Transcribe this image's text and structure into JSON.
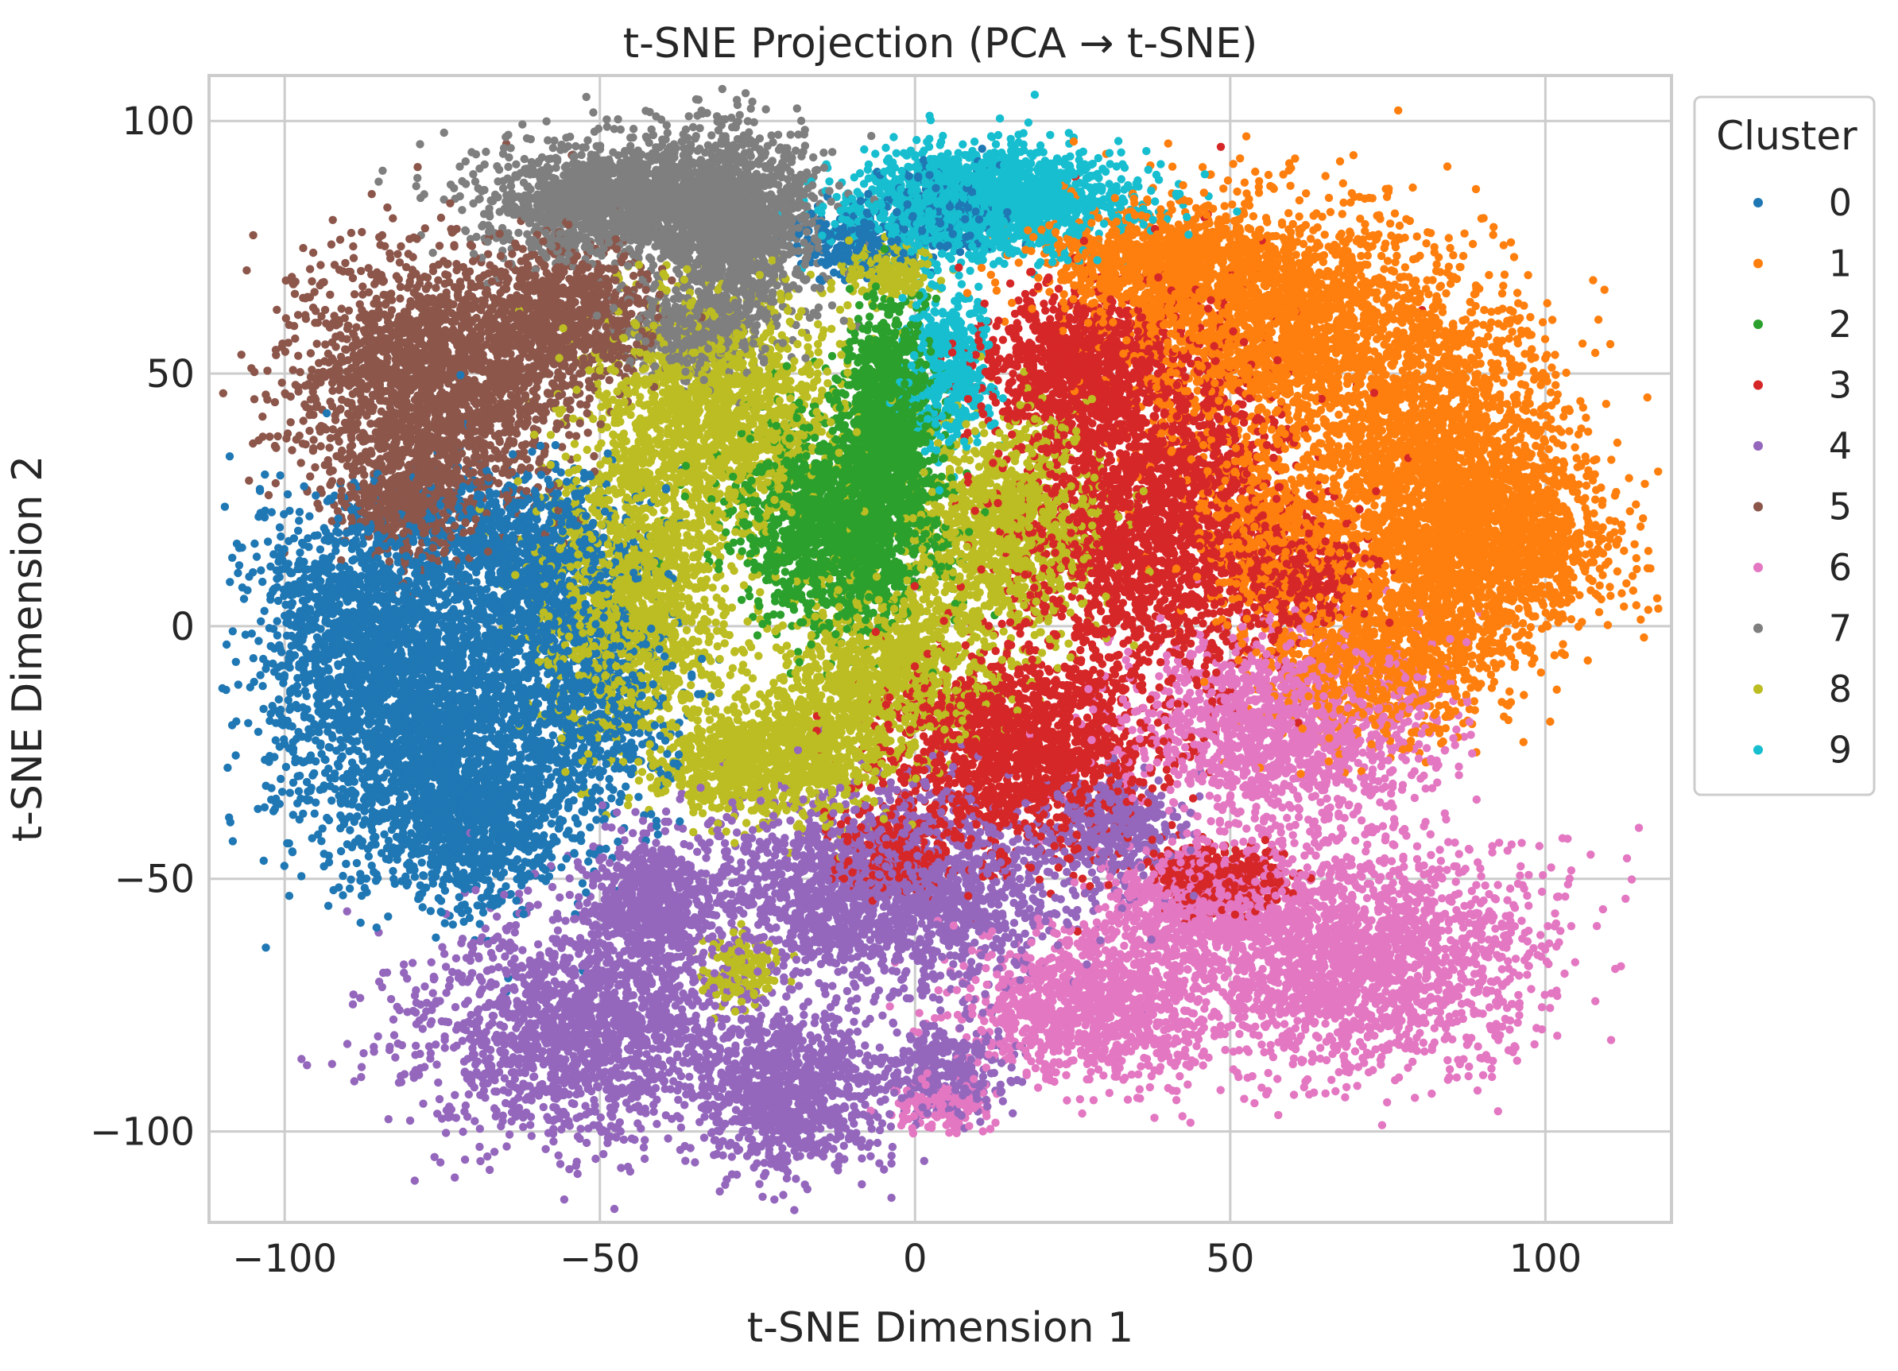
{
  "chart_data": {
    "type": "scatter",
    "title": "t-SNE Projection (PCA → t-SNE)",
    "xlabel": "t-SNE Dimension 1",
    "ylabel": "t-SNE Dimension 2",
    "xlim": [
      -112,
      120
    ],
    "ylim": [
      -118,
      109
    ],
    "xticks": [
      -100,
      -50,
      0,
      50,
      100
    ],
    "yticks": [
      -100,
      -50,
      0,
      50,
      100
    ],
    "xtick_labels": [
      "−100",
      "−50",
      "0",
      "50",
      "100"
    ],
    "ytick_labels": [
      "−100",
      "−50",
      "0",
      "50",
      "100"
    ],
    "grid": true,
    "legend": {
      "title": "Cluster",
      "placement": "outside-top-right"
    },
    "series": [
      {
        "name": "0",
        "color": "#1f77b4",
        "blobs": [
          [
            -76,
            -20,
            14,
            17,
            0.7
          ],
          [
            -88,
            2,
            10,
            14,
            0.35
          ],
          [
            -62,
            12,
            10,
            11,
            0.35
          ],
          [
            -52,
            -15,
            8,
            15,
            0.2
          ],
          [
            -70,
            -40,
            9,
            9,
            0.2
          ],
          [
            4,
            82,
            6,
            5,
            0.08
          ],
          [
            -10,
            76,
            5,
            4,
            0.06
          ]
        ]
      },
      {
        "name": "1",
        "color": "#ff7f0e",
        "blobs": [
          [
            58,
            60,
            16,
            14,
            0.7
          ],
          [
            84,
            35,
            12,
            16,
            0.55
          ],
          [
            90,
            15,
            12,
            10,
            0.45
          ],
          [
            74,
            -5,
            12,
            10,
            0.35
          ],
          [
            38,
            72,
            10,
            6,
            0.25
          ],
          [
            56,
            20,
            8,
            10,
            0.2
          ]
        ]
      },
      {
        "name": "2",
        "color": "#2ca02c",
        "blobs": [
          [
            -12,
            20,
            9,
            12,
            0.55
          ],
          [
            -4,
            42,
            4,
            12,
            0.35
          ]
        ]
      },
      {
        "name": "3",
        "color": "#d62728",
        "blobs": [
          [
            38,
            22,
            13,
            22,
            0.75
          ],
          [
            16,
            -25,
            12,
            12,
            0.5
          ],
          [
            26,
            52,
            9,
            9,
            0.3
          ],
          [
            48,
            -50,
            6,
            4,
            0.12
          ],
          [
            -4,
            -45,
            5,
            5,
            0.08
          ],
          [
            60,
            10,
            6,
            6,
            0.12
          ]
        ]
      },
      {
        "name": "4",
        "color": "#9467bd",
        "blobs": [
          [
            -5,
            -52,
            17,
            11,
            0.65
          ],
          [
            -52,
            -80,
            16,
            13,
            0.55
          ],
          [
            -42,
            -55,
            6,
            8,
            0.2
          ],
          [
            -20,
            -92,
            8,
            9,
            0.3
          ],
          [
            5,
            -88,
            6,
            5,
            0.1
          ],
          [
            32,
            -40,
            6,
            6,
            0.12
          ]
        ]
      },
      {
        "name": "5",
        "color": "#8c564b",
        "blobs": [
          [
            -76,
            48,
            13,
            15,
            0.65
          ],
          [
            -55,
            62,
            8,
            8,
            0.25
          ],
          [
            -80,
            25,
            6,
            6,
            0.15
          ]
        ]
      },
      {
        "name": "6",
        "color": "#e377c2",
        "blobs": [
          [
            70,
            -65,
            17,
            13,
            0.65
          ],
          [
            58,
            -20,
            14,
            11,
            0.45
          ],
          [
            28,
            -75,
            12,
            9,
            0.35
          ],
          [
            44,
            -55,
            8,
            6,
            0.2
          ],
          [
            4,
            -95,
            4,
            3,
            0.05
          ]
        ]
      },
      {
        "name": "7",
        "color": "#7f7f7f",
        "blobs": [
          [
            -45,
            84,
            14,
            7,
            0.55
          ],
          [
            -28,
            78,
            7,
            12,
            0.4
          ],
          [
            -36,
            58,
            6,
            5,
            0.12
          ]
        ]
      },
      {
        "name": "8",
        "color": "#bcbd22",
        "blobs": [
          [
            -32,
            42,
            11,
            14,
            0.5
          ],
          [
            -45,
            5,
            9,
            16,
            0.45
          ],
          [
            15,
            20,
            9,
            12,
            0.35
          ],
          [
            -3,
            -8,
            10,
            10,
            0.3
          ],
          [
            -18,
            -25,
            8,
            8,
            0.25
          ],
          [
            -30,
            -28,
            6,
            5,
            0.12
          ],
          [
            -4,
            70,
            4,
            3,
            0.06
          ],
          [
            -28,
            -68,
            4,
            4,
            0.05
          ]
        ]
      },
      {
        "name": "9",
        "color": "#17becf",
        "blobs": [
          [
            12,
            84,
            13,
            6,
            0.55
          ],
          [
            5,
            50,
            4,
            9,
            0.15
          ]
        ]
      }
    ]
  }
}
